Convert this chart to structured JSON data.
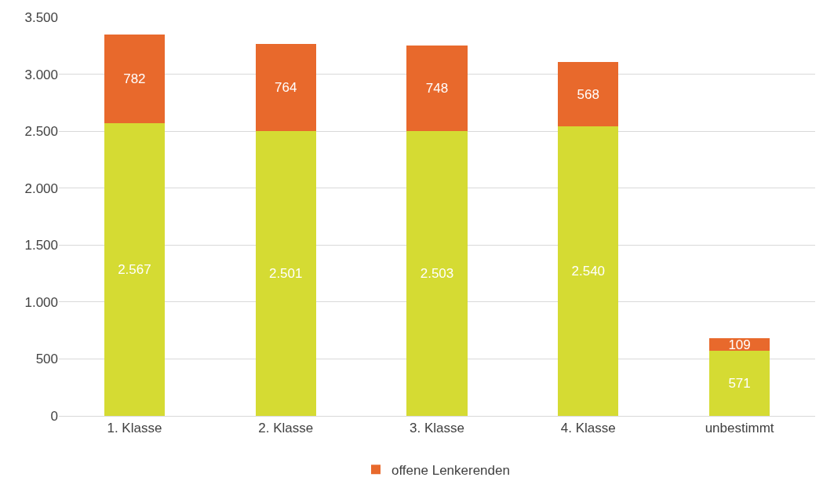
{
  "chart_data": {
    "type": "bar",
    "stacked": true,
    "categories": [
      "1. Klasse",
      "2. Klasse",
      "3. Klasse",
      "4. Klasse",
      "unbestimmt"
    ],
    "series": [
      {
        "color": "#d5db33",
        "values": [
          2567,
          2501,
          2503,
          2540,
          571
        ],
        "value_labels": [
          "2.567",
          "2.501",
          "2.503",
          "2.540",
          "571"
        ]
      },
      {
        "name": "offene Lenkerenden",
        "color": "#e8692c",
        "values": [
          782,
          764,
          748,
          568,
          109
        ],
        "value_labels": [
          "782",
          "764",
          "748",
          "568",
          "109"
        ]
      }
    ],
    "ylim": [
      0,
      3500
    ],
    "yticks": [
      0,
      {
        "value": 500,
        "label": "500"
      },
      {
        "value": 1000,
        "label": "1.000"
      },
      {
        "value": 1500,
        "label": "1.500"
      },
      {
        "value": 2000,
        "label": "2.000"
      },
      {
        "value": 2500,
        "label": "2.500"
      },
      {
        "value": 3000,
        "label": "3.000"
      },
      {
        "value": 3500,
        "label": "3.500"
      }
    ],
    "grid": "y",
    "legend": "bottom"
  }
}
